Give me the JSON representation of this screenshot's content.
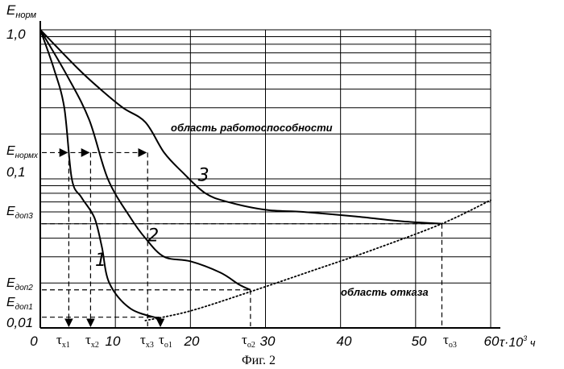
{
  "chart_data": {
    "type": "line",
    "caption": "Фиг. 2",
    "y_axis": {
      "main": "E",
      "sub": "норм"
    },
    "x_axis": {
      "main": "τ·10",
      "sup": "3",
      "unit": " ч"
    },
    "y_scale": "log",
    "xlim": [
      0,
      60
    ],
    "ylim": [
      0.01,
      1.0
    ],
    "grid": true,
    "x_ticks": [
      {
        "value": 0,
        "label": "0"
      },
      {
        "value": 10,
        "label": "10"
      },
      {
        "value": 20,
        "label": "20"
      },
      {
        "value": 30,
        "label": "30"
      },
      {
        "value": 40,
        "label": "40"
      },
      {
        "value": 50,
        "label": "50"
      },
      {
        "value": 60,
        "label": "60"
      }
    ],
    "y_ticks": [
      {
        "value": 1.0,
        "label": "1,0"
      },
      {
        "value": 0.1,
        "label": "0,1"
      },
      {
        "value": 0.01,
        "label": "0,01"
      }
    ],
    "series": [
      {
        "name": "1",
        "points": [
          [
            0,
            1.0
          ],
          [
            1.8,
            0.55
          ],
          [
            3.2,
            0.3
          ],
          [
            4.2,
            0.1
          ],
          [
            5.5,
            0.075
          ],
          [
            7.2,
            0.055
          ],
          [
            8.2,
            0.035
          ],
          [
            9.2,
            0.02
          ],
          [
            12,
            0.0135
          ],
          [
            16,
            0.0115
          ]
        ]
      },
      {
        "name": "2",
        "points": [
          [
            0,
            1.0
          ],
          [
            3.5,
            0.5
          ],
          [
            6.5,
            0.25
          ],
          [
            9,
            0.1
          ],
          [
            12,
            0.055
          ],
          [
            14,
            0.04
          ],
          [
            16.5,
            0.03
          ],
          [
            20,
            0.028
          ],
          [
            24,
            0.0235
          ],
          [
            26.5,
            0.0195
          ],
          [
            28,
            0.018
          ]
        ]
      },
      {
        "name": "3",
        "points": [
          [
            0,
            1.0
          ],
          [
            5,
            0.55
          ],
          [
            8,
            0.4
          ],
          [
            11,
            0.3
          ],
          [
            14,
            0.24
          ],
          [
            16.5,
            0.15
          ],
          [
            19,
            0.11
          ],
          [
            22,
            0.08
          ],
          [
            25,
            0.07
          ],
          [
            30,
            0.062
          ],
          [
            35,
            0.06
          ],
          [
            42,
            0.056
          ],
          [
            48,
            0.052
          ],
          [
            53.5,
            0.05
          ]
        ]
      }
    ],
    "series_labels": [
      {
        "name": "1",
        "x": 7.3,
        "y": 0.026
      },
      {
        "name": "2",
        "x": 14.3,
        "y": 0.038
      },
      {
        "name": "3",
        "x": 21,
        "y": 0.097
      }
    ],
    "failure_boundary": {
      "style": "dotted",
      "points": [
        [
          14,
          0.0112
        ],
        [
          20,
          0.013
        ],
        [
          28,
          0.0175
        ],
        [
          36,
          0.024
        ],
        [
          44,
          0.033
        ],
        [
          53.5,
          0.05
        ],
        [
          60,
          0.072
        ]
      ]
    },
    "levels": [
      {
        "name": "E_нормх",
        "main": "E",
        "sub": "нормх",
        "y": 0.15,
        "arrows_to": [
          3.8,
          6.7,
          14.3
        ]
      },
      {
        "name": "E_доп3",
        "main": "E",
        "sub": "доп3",
        "y": 0.05,
        "to": 53.5
      },
      {
        "name": "E_доп2",
        "main": "E",
        "sub": "доп2",
        "y": 0.018,
        "to": 28
      },
      {
        "name": "E_доп1",
        "main": "E",
        "sub": "доп1",
        "y": 0.0118,
        "to": 16
      }
    ],
    "tau_markers": [
      {
        "name": "τx1",
        "main": "τ",
        "sub": "x1",
        "x": 3.8,
        "level": 0.15,
        "arrow_down": true
      },
      {
        "name": "τx2",
        "main": "τ",
        "sub": "x2",
        "x": 6.7,
        "level": 0.15,
        "arrow_down": true
      },
      {
        "name": "τx3",
        "main": "τ",
        "sub": "x3",
        "x": 14.3,
        "level": 0.15,
        "arrow_down": false
      },
      {
        "name": "τo1",
        "main": "τ",
        "sub": "o1",
        "x": 16,
        "level": 0.0118,
        "arrow_down": true
      },
      {
        "name": "τo2",
        "main": "τ",
        "sub": "o2",
        "x": 28,
        "level": 0.018,
        "arrow_down": false
      },
      {
        "name": "τo3",
        "main": "τ",
        "sub": "o3",
        "x": 53.5,
        "level": 0.05,
        "arrow_down": false
      }
    ],
    "regions": {
      "operable": {
        "text": "область работоспособности",
        "x": 17.5,
        "y": 0.2
      },
      "failure": {
        "text": "область отказа",
        "x": 39.5,
        "y": 0.0185
      }
    }
  }
}
